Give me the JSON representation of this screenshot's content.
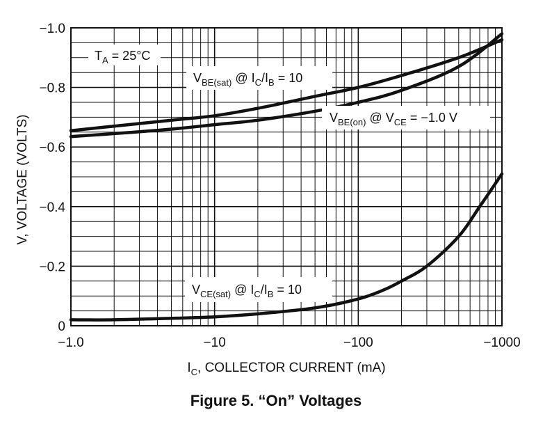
{
  "figure_caption": "Figure 5. “On” Voltages",
  "chart_data": {
    "type": "line",
    "title": "",
    "xlabel": {
      "main": "I",
      "sub": "C",
      "rest": ", COLLECTOR CURRENT (mA)"
    },
    "ylabel": "V, VOLTAGE (VOLTS)",
    "x_scale": "log",
    "xlim": [
      -1.0,
      -1000
    ],
    "ylim": [
      0,
      -1.0
    ],
    "grid": true,
    "x_ticks": [
      {
        "value": -1,
        "label": "−1.0"
      },
      {
        "value": -10,
        "label": "−10"
      },
      {
        "value": -100,
        "label": "−100"
      },
      {
        "value": -1000,
        "label": "−1000"
      }
    ],
    "y_ticks": [
      {
        "value": 0,
        "label": "0"
      },
      {
        "value": -0.2,
        "label": "−0.2"
      },
      {
        "value": -0.4,
        "label": "−0.4"
      },
      {
        "value": -0.6,
        "label": "−0.6"
      },
      {
        "value": -0.8,
        "label": "−0.8"
      },
      {
        "value": -1.0,
        "label": "−1.0"
      }
    ],
    "annotation": {
      "main": "T",
      "sub": "A",
      "rest": " = 25°C"
    },
    "series": [
      {
        "label": {
          "p1": "V",
          "s1": "BE(sat)",
          "p2": " @ I",
          "s2": "C",
          "p3": "/I",
          "s3": "B",
          "p4": " = 10"
        },
        "x": [
          -1,
          -2,
          -5,
          -10,
          -20,
          -50,
          -100,
          -200,
          -500,
          -1000
        ],
        "y": [
          -0.655,
          -0.67,
          -0.69,
          -0.705,
          -0.73,
          -0.77,
          -0.8,
          -0.84,
          -0.9,
          -0.96
        ]
      },
      {
        "label": {
          "p1": "V",
          "s1": "BE(on)",
          "p2": " @ V",
          "s2": "CE",
          "p3": " = −1.0 V"
        },
        "x": [
          -1,
          -2,
          -5,
          -10,
          -20,
          -50,
          -100,
          -200,
          -500,
          -1000
        ],
        "y": [
          -0.635,
          -0.645,
          -0.66,
          -0.675,
          -0.69,
          -0.72,
          -0.75,
          -0.79,
          -0.87,
          -0.98
        ]
      },
      {
        "label": {
          "p1": "V",
          "s1": "CE(sat)",
          "p2": " @ I",
          "s2": "C",
          "p3": "/I",
          "s3": "B",
          "p4": " = 10"
        },
        "x": [
          -1,
          -2,
          -5,
          -10,
          -20,
          -50,
          -100,
          -150,
          -200,
          -300,
          -500,
          -700,
          -1000
        ],
        "y": [
          -0.02,
          -0.02,
          -0.025,
          -0.03,
          -0.04,
          -0.06,
          -0.09,
          -0.12,
          -0.15,
          -0.2,
          -0.3,
          -0.4,
          -0.51
        ]
      }
    ]
  }
}
